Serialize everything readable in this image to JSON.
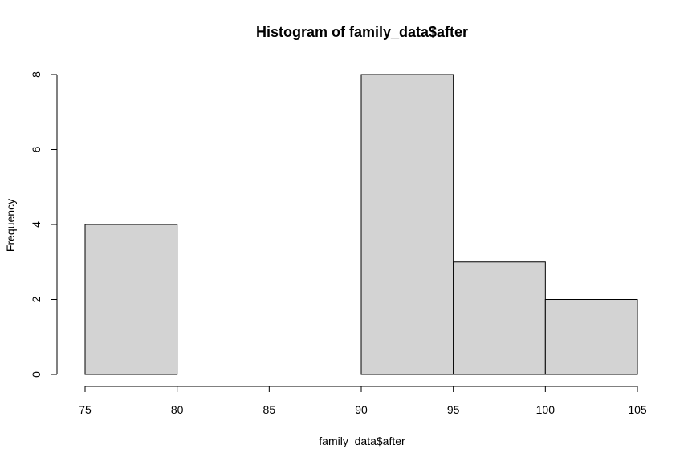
{
  "chart_data": {
    "type": "bar",
    "title": "Histogram of family_data$after",
    "xlabel": "family_data$after",
    "ylabel": "Frequency",
    "bins": [
      {
        "start": 75,
        "end": 80,
        "count": 4
      },
      {
        "start": 80,
        "end": 85,
        "count": 0
      },
      {
        "start": 85,
        "end": 90,
        "count": 0
      },
      {
        "start": 90,
        "end": 95,
        "count": 8
      },
      {
        "start": 95,
        "end": 100,
        "count": 3
      },
      {
        "start": 100,
        "end": 105,
        "count": 2
      }
    ],
    "xlim": [
      75,
      105
    ],
    "ylim": [
      0,
      8
    ],
    "x_ticks": [
      "75",
      "80",
      "85",
      "90",
      "95",
      "100",
      "105"
    ],
    "y_ticks": [
      "0",
      "2",
      "4",
      "6",
      "8"
    ],
    "grid": false,
    "legend": "none",
    "bar_fill": "#d3d3d3",
    "bar_stroke": "#000000"
  }
}
